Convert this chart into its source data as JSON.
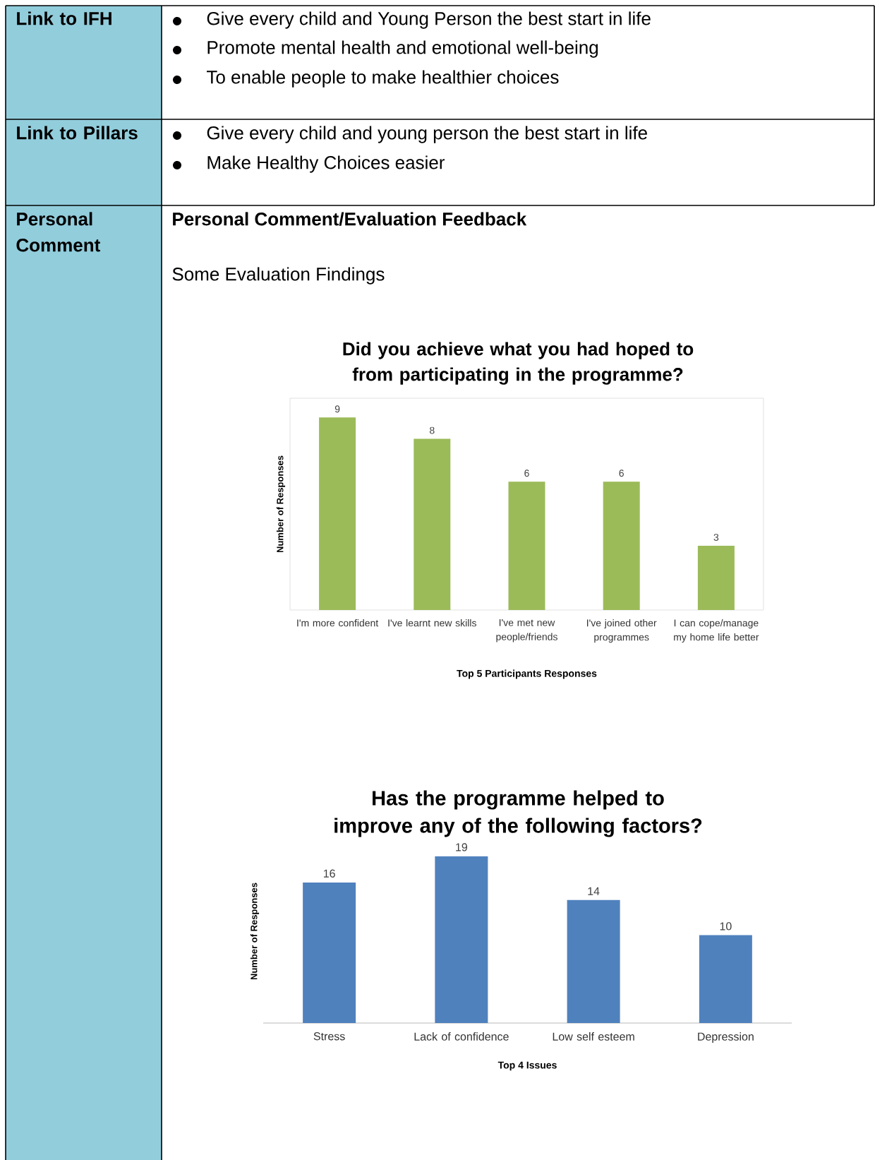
{
  "chart_data": [
    {
      "type": "bar",
      "title": "Did you achieve what you had hoped to from participating in the programme?",
      "xlabel": "Top 5 Participants Responses",
      "ylabel": "Number of Responses",
      "categories": [
        "I'm more confident",
        "I've learnt new skills",
        "I've met new people/friends",
        "I've joined other programmes",
        "I can cope/manage my home life better"
      ],
      "values": [
        9,
        8,
        6,
        6,
        3
      ],
      "color": "#9bbb59",
      "data_labels": true,
      "annotations": [
        "Link to IFH",
        "Give every child and Young Person the best start in life",
        "Promote mental health and emotional well-being",
        "To enable people to make healthier choices",
        "Link to Pillars",
        "Give every child and young person the best start in life",
        "Make Healthy Choices easier",
        "Personal Comment",
        "Personal Comment/Evaluation Feedback",
        "Some Evaluation Findings"
      ]
    },
    {
      "type": "bar",
      "title": "Has the programme helped to improve any of the following factors?",
      "xlabel": "Top 4 Issues",
      "ylabel": "Number of Responses",
      "categories": [
        "Stress",
        "Lack of confidence",
        "Low self esteem",
        "Depression"
      ],
      "values": [
        16,
        19,
        14,
        10
      ],
      "color": "#4f81bd",
      "data_labels": true
    }
  ]
}
